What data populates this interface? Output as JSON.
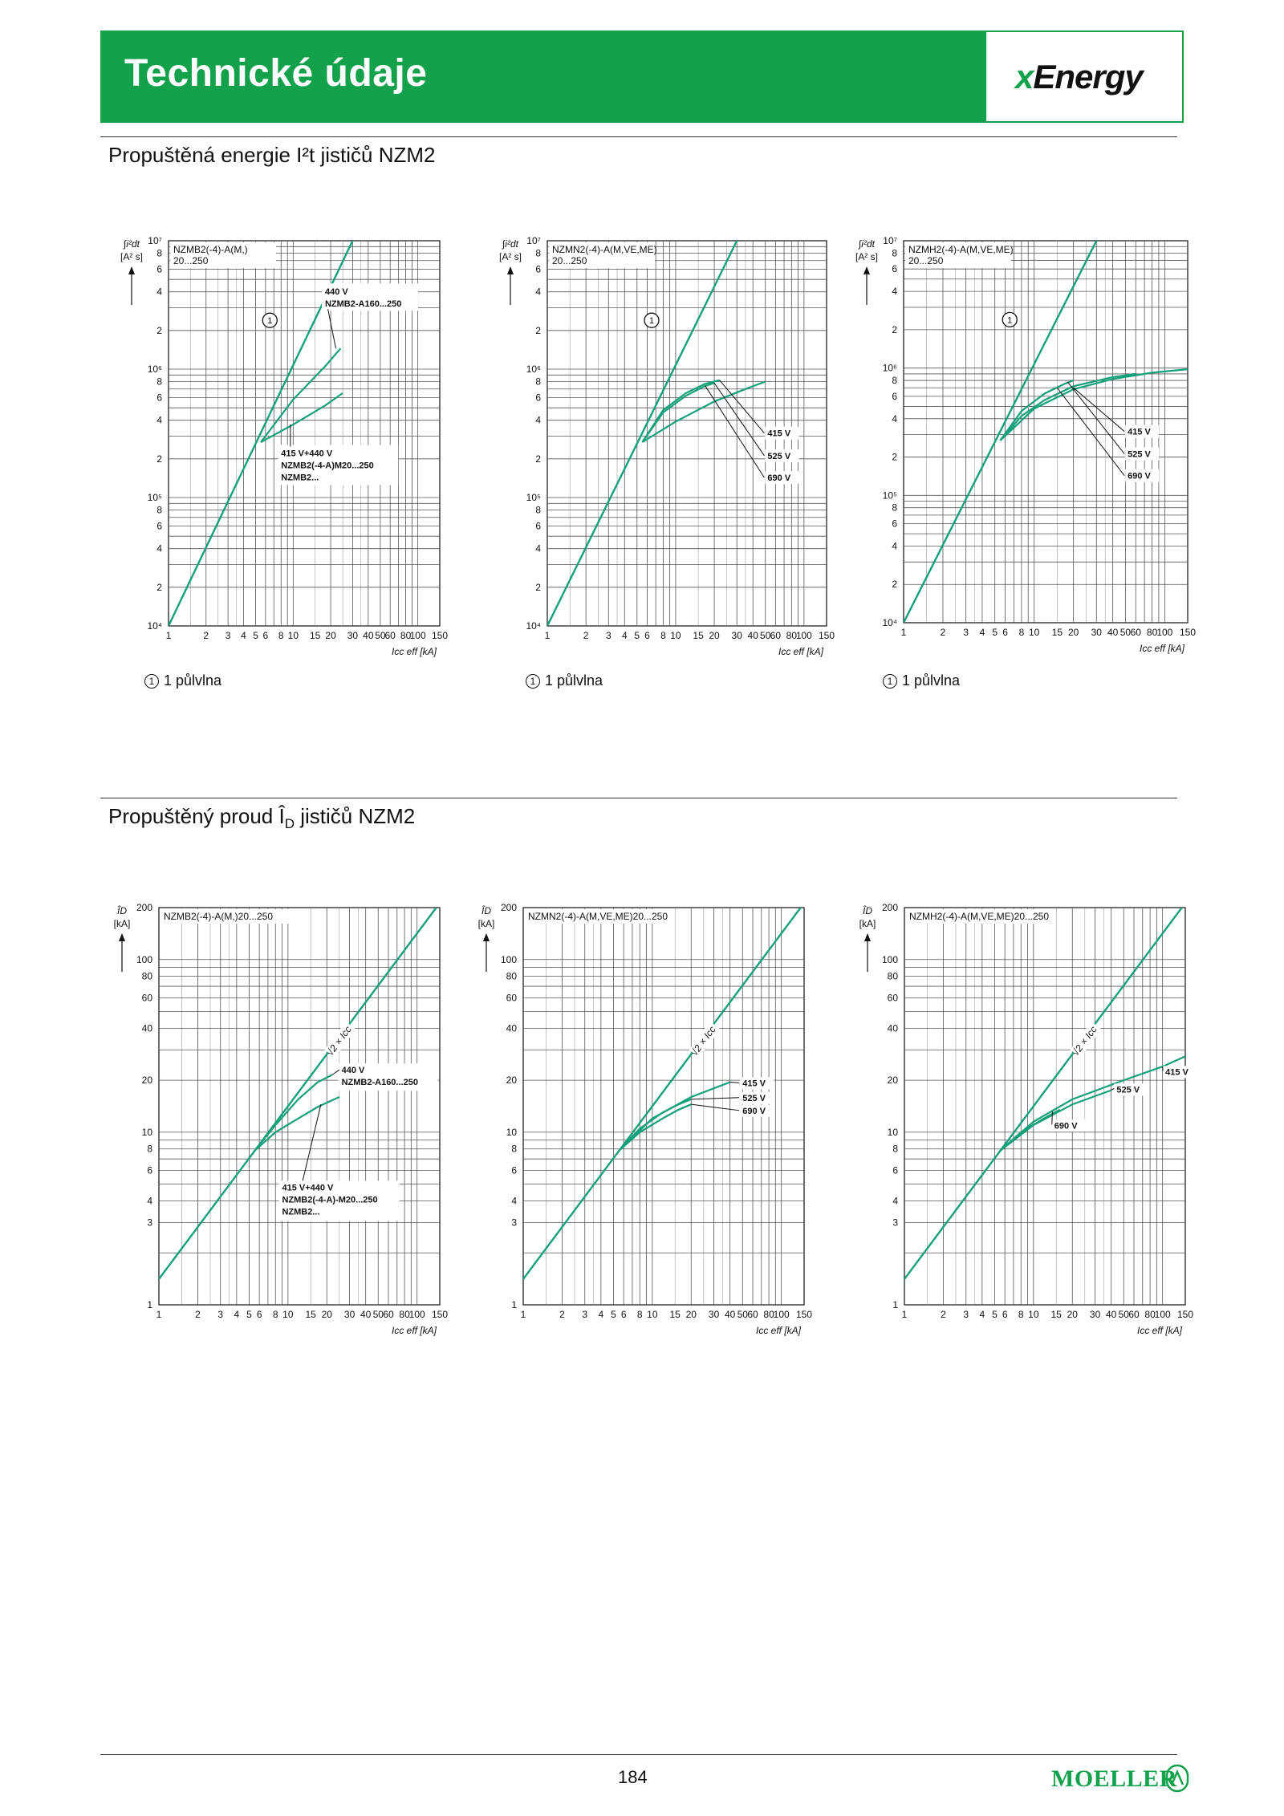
{
  "header": {
    "title": "Technické údaje",
    "logo": "xEnergy"
  },
  "sections": {
    "energy_title": "Propuštěná energie I²t jističů NZM2",
    "current_title": "Propuštěný proud Î",
    "current_title_sub": "D",
    "current_title_rest": " jističů NZM2"
  },
  "footnote_text": "1 půlvlna",
  "page_number": "184",
  "brand": "MOELLER",
  "colors": {
    "accent": "#13a24b",
    "grid": "#555555",
    "curve": "#13a07a"
  },
  "chart_data": [
    {
      "type": "line",
      "id": "i2t-nzmb2",
      "title": "NZMB2(-4)-A(M,)",
      "subtitle": "20...250",
      "ylabel": "∫i²dt",
      "yunit": "[A² s]",
      "xlabel": "Icc eff [kA]",
      "xscale": "log",
      "yscale": "log",
      "xlim": [
        1,
        150
      ],
      "ylim": [
        10000,
        10000000
      ],
      "x_ticks": [
        "1",
        "2",
        "3",
        "4",
        "5",
        "6",
        "8",
        "10",
        "15",
        "20",
        "30",
        "40",
        "50",
        "60",
        "80",
        "100",
        "150"
      ],
      "y_ticks": [
        "10⁴",
        "2",
        "4",
        "6",
        "8",
        "10⁵",
        "2",
        "4",
        "6",
        "8",
        "10⁶",
        "2",
        "4",
        "6",
        "8",
        "10⁷"
      ],
      "series": [
        {
          "name": "1 půlvlna",
          "x": [
            1,
            30
          ],
          "y": [
            10000,
            10000000
          ]
        },
        {
          "name": "440 V NZMB2-A160...250",
          "x": [
            5.5,
            10,
            18,
            24
          ],
          "y": [
            270000,
            580000,
            1050000,
            1450000
          ]
        },
        {
          "name": "415 V+440 V NZMB2(-4-A)M20...250 NZMB2...",
          "x": [
            5.5,
            10,
            18,
            25
          ],
          "y": [
            270000,
            370000,
            520000,
            650000
          ]
        }
      ],
      "annotations": [
        {
          "lines": [
            "440 V",
            "NZMB2-A160...250"
          ]
        },
        {
          "lines": [
            "415 V+440 V",
            "NZMB2(-4-A)M20...250",
            "NZMB2..."
          ]
        }
      ]
    },
    {
      "type": "line",
      "id": "i2t-nzmn2",
      "title": "NZMN2(-4)-A(M,VE,ME)",
      "subtitle": "20...250",
      "ylabel": "∫i²dt",
      "yunit": "[A² s]",
      "xlabel": "Icc eff [kA]",
      "xscale": "log",
      "yscale": "log",
      "xlim": [
        1,
        150
      ],
      "ylim": [
        10000,
        10000000
      ],
      "x_ticks": [
        "1",
        "2",
        "3",
        "4",
        "5",
        "6",
        "8",
        "10",
        "15",
        "20",
        "30",
        "40",
        "50",
        "60",
        "80",
        "100",
        "150"
      ],
      "y_ticks": [
        "10⁴",
        "2",
        "4",
        "6",
        "8",
        "10⁵",
        "2",
        "4",
        "6",
        "8",
        "10⁶",
        "2",
        "4",
        "6",
        "8",
        "10⁷"
      ],
      "series": [
        {
          "name": "1 půlvlna",
          "x": [
            1,
            30
          ],
          "y": [
            10000,
            10000000
          ]
        },
        {
          "name": "415 V",
          "x": [
            5.5,
            8,
            12,
            17,
            22
          ],
          "y": [
            270000,
            480000,
            650000,
            770000,
            820000
          ]
        },
        {
          "name": "525 V",
          "x": [
            5.5,
            8,
            12,
            17,
            20
          ],
          "y": [
            270000,
            460000,
            620000,
            740000,
            780000
          ]
        },
        {
          "name": "690 V",
          "x": [
            5.5,
            10,
            20,
            35,
            50
          ],
          "y": [
            270000,
            390000,
            560000,
            700000,
            800000
          ]
        }
      ],
      "annotations": [
        {
          "lines": [
            "415 V"
          ]
        },
        {
          "lines": [
            "525 V"
          ]
        },
        {
          "lines": [
            "690 V"
          ]
        }
      ]
    },
    {
      "type": "line",
      "id": "i2t-nzmh2",
      "title": "NZMH2(-4)-A(M,VE,ME)",
      "subtitle": "20...250",
      "ylabel": "∫i²dt",
      "yunit": "[A² s]",
      "xlabel": "Icc eff [kA]",
      "xscale": "log",
      "yscale": "log",
      "xlim": [
        1,
        150
      ],
      "ylim": [
        10000,
        10000000
      ],
      "x_ticks": [
        "1",
        "2",
        "3",
        "4",
        "5",
        "6",
        "8",
        "10",
        "15",
        "20",
        "30",
        "40",
        "50",
        "60",
        "80",
        "100",
        "150"
      ],
      "y_ticks": [
        "10⁴",
        "2",
        "4",
        "6",
        "8",
        "10⁵",
        "2",
        "4",
        "6",
        "8",
        "10⁶",
        "2",
        "4",
        "6",
        "8",
        "10⁷"
      ],
      "series": [
        {
          "name": "1 půlvlna",
          "x": [
            1,
            30
          ],
          "y": [
            10000,
            10000000
          ]
        },
        {
          "name": "415 V",
          "x": [
            5.5,
            10,
            20,
            40,
            80,
            150
          ],
          "y": [
            270000,
            480000,
            680000,
            820000,
            920000,
            980000
          ]
        },
        {
          "name": "525 V",
          "x": [
            5.5,
            8,
            12,
            17,
            20
          ],
          "y": [
            270000,
            460000,
            630000,
            750000,
            800000
          ]
        },
        {
          "name": "690 V",
          "x": [
            5.5,
            8,
            12,
            20,
            40,
            60
          ],
          "y": [
            270000,
            420000,
            560000,
            720000,
            850000,
            900000
          ]
        }
      ],
      "annotations": [
        {
          "lines": [
            "415 V"
          ]
        },
        {
          "lines": [
            "525 V"
          ]
        },
        {
          "lines": [
            "690 V"
          ]
        }
      ]
    },
    {
      "type": "line",
      "id": "id-nzmb2",
      "title": "NZMB2(-4)-A(M,)20...250",
      "ylabel": "Î",
      "ylabel_sub": "D",
      "yunit": "[kA]",
      "xlabel": "Icc eff [kA]",
      "xscale": "log",
      "yscale": "log",
      "xlim": [
        1,
        150
      ],
      "ylim": [
        1,
        200
      ],
      "x_ticks": [
        "1",
        "2",
        "3",
        "4",
        "5",
        "6",
        "8",
        "10",
        "15",
        "20",
        "30",
        "40",
        "50",
        "60",
        "80",
        "100",
        "150"
      ],
      "y_ticks": [
        "1",
        "3",
        "4",
        "6",
        "8",
        "10",
        "20",
        "40",
        "60",
        "80",
        "100",
        "200"
      ],
      "series": [
        {
          "name": "√2 × Icc",
          "x": [
            1,
            141
          ],
          "y": [
            1.41,
            200
          ]
        },
        {
          "name": "440 V NZMB2-A160...250",
          "x": [
            5.5,
            8,
            12,
            17,
            22
          ],
          "y": [
            7.8,
            11,
            15.5,
            19.5,
            21.5
          ]
        },
        {
          "name": "415 V+440 V NZMB2(-4-A)-M20...250 NZMB2...",
          "x": [
            5.5,
            8,
            12,
            17,
            25
          ],
          "y": [
            7.8,
            10,
            12,
            14,
            16
          ]
        }
      ],
      "annotations": [
        {
          "lines": [
            "√2 × Icc"
          ]
        },
        {
          "lines": [
            "440 V",
            "NZMB2-A160...250"
          ]
        },
        {
          "lines": [
            "415 V+440 V",
            "NZMB2(-4-A)-M20...250",
            "NZMB2..."
          ]
        }
      ]
    },
    {
      "type": "line",
      "id": "id-nzmn2",
      "title": "NZMN2(-4)-A(M,VE,ME)20...250",
      "ylabel": "Î",
      "ylabel_sub": "D",
      "yunit": "[kA]",
      "xlabel": "Icc eff [kA]",
      "xscale": "log",
      "yscale": "log",
      "xlim": [
        1,
        150
      ],
      "ylim": [
        1,
        200
      ],
      "x_ticks": [
        "1",
        "2",
        "3",
        "4",
        "5",
        "6",
        "8",
        "10",
        "15",
        "20",
        "30",
        "40",
        "50",
        "60",
        "80",
        "100",
        "150"
      ],
      "y_ticks": [
        "1",
        "3",
        "4",
        "6",
        "8",
        "10",
        "20",
        "40",
        "60",
        "80",
        "100",
        "200"
      ],
      "series": [
        {
          "name": "√2 × Icc",
          "x": [
            1,
            141
          ],
          "y": [
            1.41,
            200
          ]
        },
        {
          "name": "415 V",
          "x": [
            5.5,
            10,
            20,
            40
          ],
          "y": [
            7.8,
            12,
            16,
            19.5
          ]
        },
        {
          "name": "525 V",
          "x": [
            5.5,
            8,
            12,
            16,
            20
          ],
          "y": [
            7.8,
            10.5,
            13,
            14.5,
            15.5
          ]
        },
        {
          "name": "690 V",
          "x": [
            5.5,
            8,
            12,
            16,
            20
          ],
          "y": [
            7.8,
            10,
            12,
            13.5,
            14.5
          ]
        }
      ],
      "annotations": [
        {
          "lines": [
            "√2 × Icc"
          ]
        },
        {
          "lines": [
            "415 V"
          ]
        },
        {
          "lines": [
            "525 V"
          ]
        },
        {
          "lines": [
            "690 V"
          ]
        }
      ]
    },
    {
      "type": "line",
      "id": "id-nzmh2",
      "title": "NZMH2(-4)-A(M,VE,ME)20...250",
      "ylabel": "Î",
      "ylabel_sub": "D",
      "yunit": "[kA]",
      "xlabel": "Icc eff [kA]",
      "xscale": "log",
      "yscale": "log",
      "xlim": [
        1,
        150
      ],
      "ylim": [
        1,
        200
      ],
      "x_ticks": [
        "1",
        "2",
        "3",
        "4",
        "5",
        "6",
        "8",
        "10",
        "15",
        "20",
        "30",
        "40",
        "50",
        "60",
        "80",
        "100",
        "150"
      ],
      "y_ticks": [
        "1",
        "3",
        "4",
        "6",
        "8",
        "10",
        "20",
        "40",
        "60",
        "80",
        "100",
        "200"
      ],
      "series": [
        {
          "name": "√2 × Icc",
          "x": [
            1,
            141
          ],
          "y": [
            1.41,
            200
          ]
        },
        {
          "name": "415 V",
          "x": [
            5.5,
            10,
            20,
            50,
            100,
            150
          ],
          "y": [
            7.8,
            11.5,
            15.5,
            20,
            24,
            27.5
          ]
        },
        {
          "name": "525 V",
          "x": [
            5.5,
            10,
            20,
            40
          ],
          "y": [
            7.8,
            11,
            14.5,
            17.5
          ]
        },
        {
          "name": "690 V",
          "x": [
            5.5,
            8,
            12,
            16
          ],
          "y": [
            7.8,
            10,
            12,
            13.5
          ]
        }
      ],
      "annotations": [
        {
          "lines": [
            "√2 × Icc"
          ]
        },
        {
          "lines": [
            "415 V"
          ]
        },
        {
          "lines": [
            "525 V"
          ]
        },
        {
          "lines": [
            "690 V"
          ]
        }
      ]
    }
  ]
}
